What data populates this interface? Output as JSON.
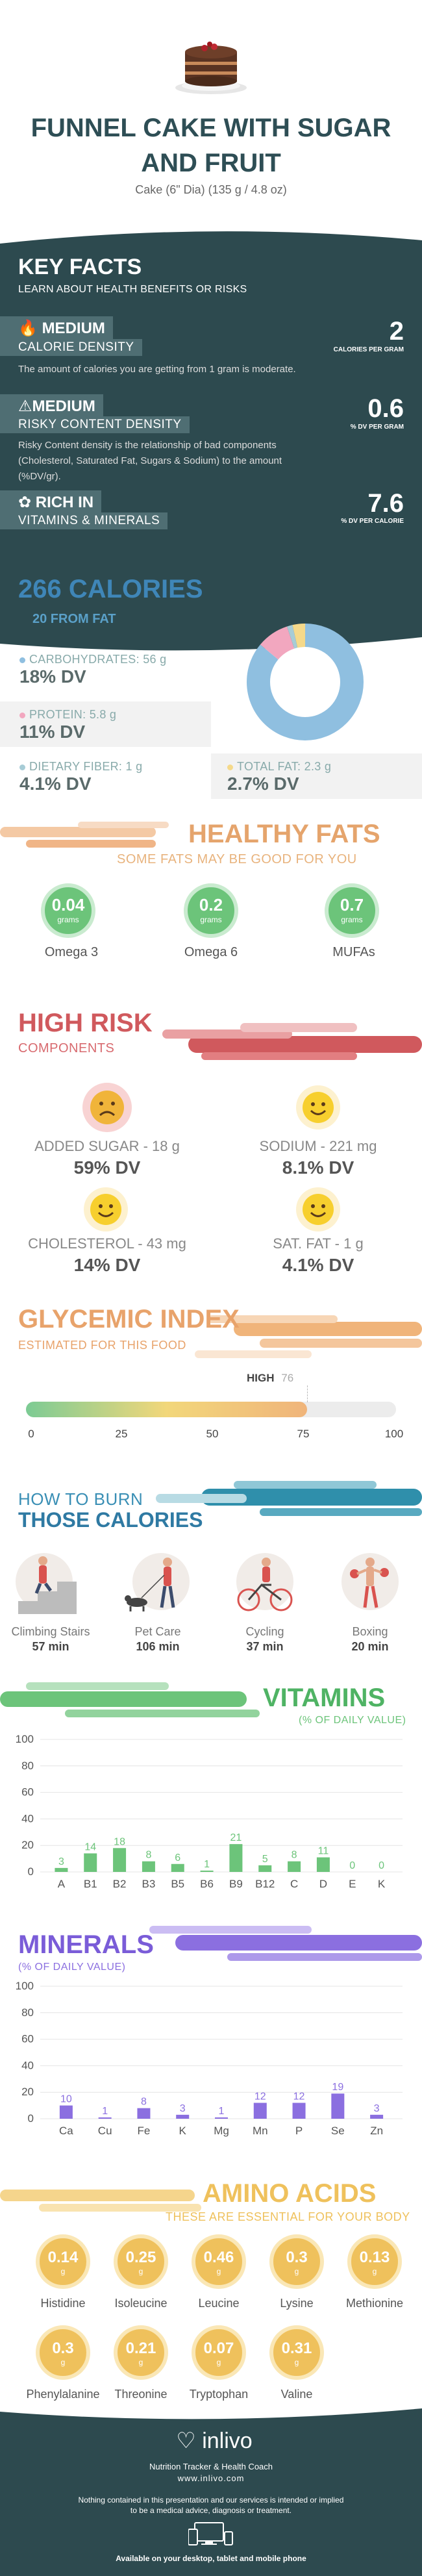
{
  "header": {
    "title": "FUNNEL CAKE WITH SUGAR AND FRUIT",
    "subtitle": "Cake (6\" Dia) (135 g / 4.8 oz)"
  },
  "key_facts": {
    "title": "KEY FACTS",
    "subtitle": "LEARN ABOUT HEALTH BENEFITS OR RISKS",
    "calorie_density": {
      "level": "MEDIUM",
      "label": "CALORIE DENSITY",
      "description": "The amount of calories you are getting from 1 gram is moderate.",
      "value": "2",
      "unit": "CALORIES PER GRAM"
    },
    "risky_density": {
      "level": "MEDIUM",
      "label": "RISKY CONTENT DENSITY",
      "description": "Risky Content density is the relationship of bad components (Cholesterol, Saturated Fat, Sugars & Sodium) to the amount (%DV/gr).",
      "value": "0.6",
      "unit": "% DV PER GRAM"
    },
    "vitamins": {
      "level": "RICH  IN",
      "label": "VITAMINS & MINERALS",
      "value": "7.6",
      "unit": "% DV PER CALORIE"
    }
  },
  "calories": {
    "title": "266 CALORIES",
    "from_fat": "20 FROM FAT",
    "carbs_label": "CARBOHYDRATES: 56 g",
    "carbs_dv": "18% DV",
    "protein_label": "PROTEIN: 5.8 g",
    "protein_dv": "11% DV",
    "fiber_label": "DIETARY FIBER: 1 g",
    "fiber_dv": "4.1% DV",
    "fat_label": "TOTAL FAT: 2.3 g",
    "fat_dv": "2.7% DV",
    "colors": {
      "carbs": "#8fbfe0",
      "protein": "#f2a7bf",
      "fiber": "#a7ccd6",
      "fat": "#f5d98a"
    }
  },
  "healthy_fats": {
    "title": "HEALTHY FATS",
    "subtitle": "SOME FATS MAY BE GOOD FOR YOU",
    "items": [
      {
        "value": "0.04",
        "unit": "grams",
        "name": "Omega 3"
      },
      {
        "value": "0.2",
        "unit": "grams",
        "name": "Omega 6"
      },
      {
        "value": "0.7",
        "unit": "grams",
        "name": "MUFAs"
      }
    ]
  },
  "high_risk": {
    "title": "HIGH RISK",
    "subtitle": "COMPONENTS",
    "items": [
      {
        "label": "ADDED SUGAR - 18 g",
        "dv": "59% DV",
        "status": "bad"
      },
      {
        "label": "SODIUM - 221 mg",
        "dv": "8.1% DV",
        "status": "good"
      },
      {
        "label": "CHOLESTEROL - 43 mg",
        "dv": "14% DV",
        "status": "good"
      },
      {
        "label": "SAT. FAT - 1 g",
        "dv": "4.1% DV",
        "status": "good"
      }
    ]
  },
  "glycemic": {
    "title": "GLYCEMIC INDEX",
    "subtitle": "ESTIMATED FOR THIS FOOD",
    "level": "HIGH",
    "value": 76,
    "value_label": "76",
    "ticks": [
      "0",
      "25",
      "50",
      "75",
      "100"
    ]
  },
  "burn": {
    "title1": "HOW TO BURN",
    "title2": "THOSE CALORIES",
    "activities": [
      {
        "name": "Climbing Stairs",
        "minutes": "57 min"
      },
      {
        "name": "Pet Care",
        "minutes": "106 min"
      },
      {
        "name": "Cycling",
        "minutes": "37 min"
      },
      {
        "name": "Boxing",
        "minutes": "20 min"
      }
    ]
  },
  "vitamins": {
    "title": "VITAMINS",
    "subtitle": "(% OF DAILY VALUE)"
  },
  "minerals": {
    "title": "MINERALS",
    "subtitle": "(% OF DAILY VALUE)"
  },
  "amino_acids": {
    "title": "AMINO ACIDS",
    "subtitle": "THESE ARE ESSENTIAL FOR YOUR BODY",
    "items": [
      {
        "value": "0.14",
        "unit": "g",
        "name": "Histidine"
      },
      {
        "value": "0.25",
        "unit": "g",
        "name": "Isoleucine"
      },
      {
        "value": "0.46",
        "unit": "g",
        "name": "Leucine"
      },
      {
        "value": "0.3",
        "unit": "g",
        "name": "Lysine"
      },
      {
        "value": "0.13",
        "unit": "g",
        "name": "Methionine"
      },
      {
        "value": "0.3",
        "unit": "g",
        "name": "Phenylalanine"
      },
      {
        "value": "0.21",
        "unit": "g",
        "name": "Threonine"
      },
      {
        "value": "0.07",
        "unit": "g",
        "name": "Tryptophan"
      },
      {
        "value": "0.31",
        "unit": "g",
        "name": "Valine"
      }
    ]
  },
  "footer": {
    "brand": "inlivo",
    "tagline": "Nutrition Tracker & Health Coach",
    "url": "www.inlivo.com",
    "disclaimer1": "Nothing contained in this presentation and our services is intended or implied",
    "disclaimer2": "to be a medical advice, diagnosis or treatment.",
    "available": "Available on your desktop, tablet and mobile phone"
  },
  "chart_data": [
    {
      "type": "pie",
      "categories": [
        "CARBOHYDRATES",
        "PROTEIN",
        "DIETARY FIBER",
        "TOTAL FAT"
      ],
      "values": [
        56,
        5.8,
        1,
        2.3
      ],
      "colors": [
        "#8fbfe0",
        "#f2a7bf",
        "#a7ccd6",
        "#f5d98a"
      ]
    },
    {
      "type": "bar",
      "title": "VITAMINS",
      "categories": [
        "A",
        "B1",
        "B2",
        "B3",
        "B5",
        "B6",
        "B9",
        "B12",
        "C",
        "D",
        "E",
        "K"
      ],
      "values": [
        3,
        14,
        18,
        8,
        6,
        1,
        21,
        5,
        8,
        11,
        0,
        0
      ],
      "ylim": [
        0,
        100
      ],
      "yticks": [
        0,
        20,
        40,
        60,
        80,
        100
      ],
      "color": "#6cc47a"
    },
    {
      "type": "bar",
      "title": "MINERALS",
      "categories": [
        "Ca",
        "Cu",
        "Fe",
        "K",
        "Mg",
        "Mn",
        "P",
        "Se",
        "Zn"
      ],
      "values": [
        10,
        1,
        8,
        3,
        1,
        12,
        12,
        19,
        3
      ],
      "ylim": [
        0,
        100
      ],
      "yticks": [
        0,
        20,
        40,
        60,
        80,
        100
      ],
      "color": "#8b6fe0"
    }
  ]
}
